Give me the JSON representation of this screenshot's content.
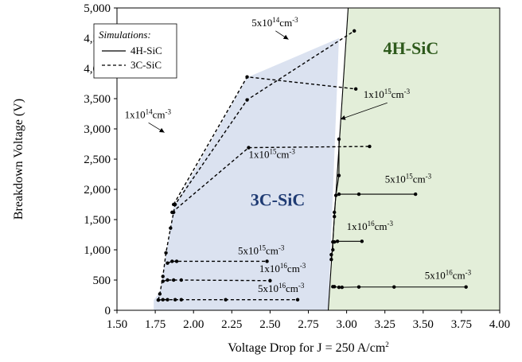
{
  "chart_data": {
    "type": "scatter",
    "title": "",
    "xlabel": "Voltage Drop for J = 250 A/cm",
    "xlabel_sup": "2",
    "ylabel": "Breakdown Voltage (V)",
    "xlim": [
      1.5,
      4.0
    ],
    "ylim": [
      0,
      5000
    ],
    "x_ticks": [
      "1.50",
      "1.75",
      "2.00",
      "2.25",
      "2.50",
      "2.75",
      "3.00",
      "3.25",
      "3.50",
      "3.75",
      "4.00"
    ],
    "y_ticks": [
      "0",
      "500",
      "1,000",
      "1,500",
      "2,000",
      "2,500",
      "3,000",
      "3,500",
      "4,000",
      "4,500",
      "5,000"
    ],
    "grid": false,
    "legend": {
      "title": "Simulations:",
      "placement": "top-left",
      "entries": [
        {
          "label": "4H-SiC",
          "style": "solid"
        },
        {
          "label": "3C-SiC",
          "style": "dashed"
        }
      ]
    },
    "regions": [
      {
        "label": "3C-SiC",
        "color": "#dbe2f0",
        "label_color": "#1f3b73"
      },
      {
        "label": "4H-SiC",
        "color": "#e3eed9",
        "label_color": "#2e5a1c"
      }
    ],
    "boundaries": {
      "region_3c": [
        [
          1.74,
          0
        ],
        [
          1.74,
          170
        ],
        [
          1.78,
          300
        ],
        [
          1.87,
          1700
        ],
        [
          2.35,
          3850
        ],
        [
          2.95,
          4500
        ],
        [
          2.88,
          0
        ]
      ],
      "region_4h_left": [
        [
          2.88,
          0
        ],
        [
          3.01,
          5000
        ]
      ]
    },
    "series": [
      {
        "label": "4H-SiC",
        "style": "solid",
        "points": [
          [
            2.88,
            0
          ],
          [
            3.01,
            5000
          ]
        ]
      },
      {
        "label": "4H-SiC",
        "style": "solid",
        "points": [
          [
            2.95,
            2830
          ],
          [
            2.95,
            2230
          ],
          [
            2.93,
            1900
          ],
          [
            2.92,
            1620
          ],
          [
            2.92,
            1550
          ],
          [
            2.91,
            1130
          ],
          [
            2.91,
            1000
          ],
          [
            2.9,
            920
          ],
          [
            2.9,
            840
          ]
        ]
      },
      {
        "label": "4H-SiC",
        "style": "solid",
        "points": [
          [
            2.95,
            1920
          ],
          [
            3.08,
            1920
          ],
          [
            3.45,
            1920
          ]
        ]
      },
      {
        "label": "4H-SiC",
        "style": "solid",
        "points": [
          [
            2.92,
            1130
          ],
          [
            2.94,
            1140
          ],
          [
            3.1,
            1140
          ]
        ]
      },
      {
        "label": "4H-SiC",
        "style": "solid",
        "points": [
          [
            2.91,
            390
          ],
          [
            2.92,
            390
          ],
          [
            2.95,
            380
          ],
          [
            2.97,
            380
          ],
          [
            3.08,
            385
          ],
          [
            3.31,
            385
          ],
          [
            3.78,
            385
          ]
        ]
      },
      {
        "label": "3C-SiC",
        "style": "dashed",
        "points": [
          [
            1.77,
            170
          ],
          [
            1.78,
            270
          ],
          [
            1.8,
            560
          ],
          [
            1.82,
            950
          ],
          [
            1.85,
            1360
          ],
          [
            1.87,
            1620
          ],
          [
            1.88,
            1750
          ],
          [
            2.35,
            3480
          ],
          [
            3.05,
            4620
          ]
        ]
      },
      {
        "label": "3C-SiC",
        "style": "dashed",
        "points": [
          [
            1.87,
            1750
          ],
          [
            2.35,
            3860
          ],
          [
            3.06,
            3660
          ]
        ]
      },
      {
        "label": "3C-SiC",
        "style": "dashed",
        "points": [
          [
            1.86,
            1620
          ],
          [
            2.36,
            2690
          ],
          [
            3.15,
            2710
          ]
        ]
      },
      {
        "label": "3C-SiC",
        "style": "dashed",
        "points": [
          [
            1.83,
            780
          ],
          [
            1.86,
            810
          ],
          [
            1.89,
            810
          ],
          [
            2.48,
            810
          ]
        ]
      },
      {
        "label": "3C-SiC",
        "style": "dashed",
        "points": [
          [
            1.8,
            480
          ],
          [
            1.83,
            500
          ],
          [
            1.87,
            500
          ],
          [
            1.92,
            500
          ],
          [
            2.5,
            490
          ]
        ]
      },
      {
        "label": "3C-SiC",
        "style": "dashed",
        "points": [
          [
            1.77,
            170
          ],
          [
            1.8,
            175
          ],
          [
            1.83,
            175
          ],
          [
            1.88,
            175
          ],
          [
            1.92,
            175
          ],
          [
            2.21,
            175
          ],
          [
            2.68,
            175
          ]
        ]
      }
    ],
    "annotations": [
      {
        "base": "5x10",
        "exp": "14",
        "unit": "cm",
        "unit_exp": "-3",
        "x": 2.38,
        "y": 4700,
        "arrow_to": [
          2.62,
          4480
        ]
      },
      {
        "base": "1x10",
        "exp": "14",
        "unit": "cm",
        "unit_exp": "-3",
        "x": 1.55,
        "y": 3180,
        "arrow_to": [
          1.81,
          2940
        ]
      },
      {
        "base": "1x10",
        "exp": "15",
        "unit": "cm",
        "unit_exp": "-3",
        "x": 3.11,
        "y": 3510,
        "arrow_to": [
          2.96,
          3160
        ]
      },
      {
        "base": "1x10",
        "exp": "15",
        "unit": "cm",
        "unit_exp": "-3",
        "x": 2.36,
        "y": 2520
      },
      {
        "base": "5x10",
        "exp": "15",
        "unit": "cm",
        "unit_exp": "-3",
        "x": 3.25,
        "y": 2110
      },
      {
        "base": "1x10",
        "exp": "16",
        "unit": "cm",
        "unit_exp": "-3",
        "x": 3.0,
        "y": 1330
      },
      {
        "base": "5x10",
        "exp": "15",
        "unit": "cm",
        "unit_exp": "-3",
        "x": 2.29,
        "y": 930
      },
      {
        "base": "1x10",
        "exp": "16",
        "unit": "cm",
        "unit_exp": "-3",
        "x": 2.43,
        "y": 630
      },
      {
        "base": "5x10",
        "exp": "16",
        "unit": "cm",
        "unit_exp": "-3",
        "x": 2.42,
        "y": 300
      },
      {
        "base": "5x10",
        "exp": "16",
        "unit": "cm",
        "unit_exp": "-3",
        "x": 3.51,
        "y": 520
      }
    ],
    "region_labels": [
      {
        "text": "3C-SiC",
        "x": 2.55,
        "y": 1730,
        "color": "#1f3b73"
      },
      {
        "text": "4H-SiC",
        "x": 3.42,
        "y": 4240,
        "color": "#2e5a1c"
      }
    ]
  }
}
